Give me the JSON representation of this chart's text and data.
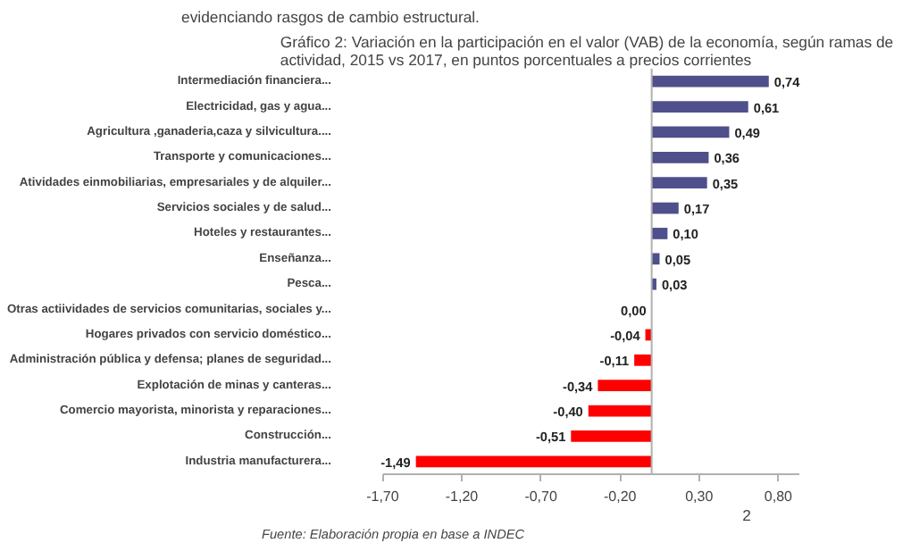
{
  "chart_data": {
    "type": "bar",
    "orientation": "horizontal",
    "title": "Gráfico 2: Variación en la participación en el valor (VAB) de la economía, según ramas de actividad, 2015 vs 2017, en puntos porcentuales a precios corrientes",
    "categories": [
      "Intermediación financiera...",
      "Electricidad, gas y agua...",
      "Agricultura ,ganaderia,caza y silvicultura....",
      "Transporte y comunicaciones...",
      "Atividades einmobiliarias, empresariales y de alquiler...",
      "Servicios sociales y de salud...",
      "Hoteles y restaurantes...",
      "Enseñanza...",
      "Pesca...",
      "Otras actiividades de servicios comunitarias, sociales y...",
      "Hogares privados con servicio doméstico...",
      "Administración pública y defensa; planes de seguridad...",
      "Explotación de minas y canteras...",
      "Comercio mayorista, minorista y reparaciones...",
      "Construcción...",
      "Industria manufacturera..."
    ],
    "values": [
      0.74,
      0.61,
      0.49,
      0.36,
      0.35,
      0.17,
      0.1,
      0.05,
      0.03,
      0.0,
      -0.04,
      -0.11,
      -0.34,
      -0.4,
      -0.51,
      -1.49
    ],
    "colors": [
      "#4f4f8c",
      "#4f4f8c",
      "#4f4f8c",
      "#4f4f8c",
      "#4f4f8c",
      "#4f4f8c",
      "#4f4f8c",
      "#4f4f8c",
      "#4f4f8c",
      "#4f4f8c",
      "#ff0000",
      "#ff0000",
      "#ff0000",
      "#ff0000",
      "#ff0000",
      "#ff0000"
    ],
    "value_labels": [
      "0,74",
      "0,61",
      "0,49",
      "0,36",
      "0,35",
      "0,17",
      "0,10",
      "0,05",
      "0,03",
      "0,00",
      "-0,04",
      "-0,11",
      "-0,34",
      "-0,40",
      "-0,51",
      "-1,49"
    ],
    "xlim": [
      -1.7,
      0.93
    ],
    "xticks": [
      {
        "value": -1.7,
        "label": "-1,70"
      },
      {
        "value": -1.2,
        "label": "-1,20"
      },
      {
        "value": -0.7,
        "label": "-0,70"
      },
      {
        "value": -0.2,
        "label": "-0,20"
      },
      {
        "value": 0.3,
        "label": "0,30"
      },
      {
        "value": 0.8,
        "label": "0,80"
      }
    ],
    "grid": false,
    "annotations": [
      "evidenciando rasgos de cambio estructural.",
      "Fuente: Elaboración propia en base a INDEC",
      "2"
    ]
  }
}
